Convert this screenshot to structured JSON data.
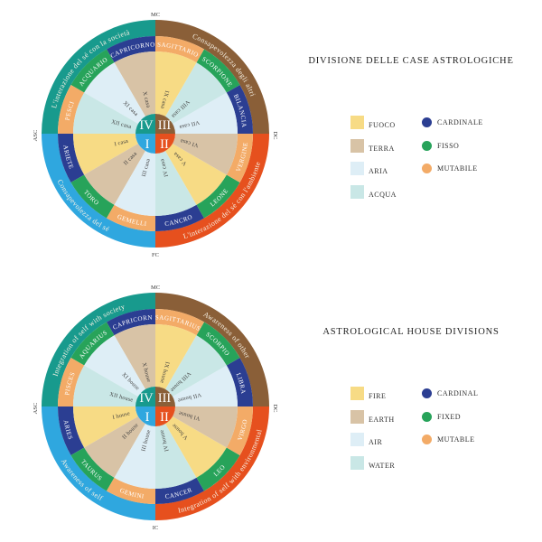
{
  "colors": {
    "fire": "#f7db85",
    "earth": "#d8c3a6",
    "air": "#deeef6",
    "water": "#c9e7e6",
    "cardinal": "#2b3e92",
    "fixed": "#27a35a",
    "mutable": "#f3ab67",
    "quadrant_teal": "#189a8d",
    "quadrant_brown": "#8a5f38",
    "quadrant_blue": "#2fa7df",
    "quadrant_red": "#e6501e",
    "wheel_text_light": "#f6f1e4",
    "wheel_text_dark": "#3f3e3e",
    "outside_label": "#3a3a3a"
  },
  "legends": [
    {
      "title": "DIVISIONE DELLE CASE ASTROLOGICHE",
      "elements": [
        {
          "label": "FUOCO",
          "key": "fire"
        },
        {
          "label": "TERRA",
          "key": "earth"
        },
        {
          "label": "ARIA",
          "key": "air"
        },
        {
          "label": "ACQUA",
          "key": "water"
        }
      ],
      "modalities": [
        {
          "label": "CARDINALE",
          "key": "cardinal"
        },
        {
          "label": "FISSO",
          "key": "fixed"
        },
        {
          "label": "MUTABILE",
          "key": "mutable"
        }
      ]
    },
    {
      "title": "ASTROLOGICAL HOUSE DIVISIONS",
      "elements": [
        {
          "label": "FIRE",
          "key": "fire"
        },
        {
          "label": "EARTH",
          "key": "earth"
        },
        {
          "label": "AIR",
          "key": "air"
        },
        {
          "label": "WATER",
          "key": "water"
        }
      ],
      "modalities": [
        {
          "label": "CARDINAL",
          "key": "cardinal"
        },
        {
          "label": "FIXED",
          "key": "fixed"
        },
        {
          "label": "MUTABLE",
          "key": "mutable"
        }
      ]
    }
  ],
  "wheels": [
    {
      "id": "italian",
      "cardinal_points": {
        "top": "MC",
        "right": "DC",
        "bottom": "FC",
        "left": "ASC"
      },
      "quadrants": [
        {
          "position": "top-left",
          "numeral": "IV",
          "label": "L'interazione del sé con la società",
          "color": "quadrant_teal"
        },
        {
          "position": "top-right",
          "numeral": "III",
          "label": "Consapevolezza degli altri",
          "color": "quadrant_brown"
        },
        {
          "position": "bottom-left",
          "numeral": "I",
          "label": "Consapevolezza del sé",
          "color": "quadrant_blue"
        },
        {
          "position": "bottom-right",
          "numeral": "II",
          "label": "L'interazione del sé con l'ambiente",
          "color": "quadrant_red"
        }
      ],
      "houses": [
        {
          "house": "I casa",
          "sign": "ARIETE",
          "element": "fire",
          "modality": "cardinal"
        },
        {
          "house": "II casa",
          "sign": "TORO",
          "element": "earth",
          "modality": "fixed"
        },
        {
          "house": "III casa",
          "sign": "GEMELLI",
          "element": "air",
          "modality": "mutable"
        },
        {
          "house": "IV casa",
          "sign": "CANCRO",
          "element": "water",
          "modality": "cardinal"
        },
        {
          "house": "V casa",
          "sign": "LEONE",
          "element": "fire",
          "modality": "fixed"
        },
        {
          "house": "VI casa",
          "sign": "VERGINE",
          "element": "earth",
          "modality": "mutable"
        },
        {
          "house": "VII casa",
          "sign": "BILANCIA",
          "element": "air",
          "modality": "cardinal"
        },
        {
          "house": "VIII casa",
          "sign": "SCORPIONE",
          "element": "water",
          "modality": "fixed"
        },
        {
          "house": "IX casa",
          "sign": "SAGITTARIO",
          "element": "fire",
          "modality": "mutable"
        },
        {
          "house": "X casa",
          "sign": "CAPRICORNO",
          "element": "earth",
          "modality": "cardinal"
        },
        {
          "house": "XI casa",
          "sign": "ACQUARIO",
          "element": "air",
          "modality": "fixed"
        },
        {
          "house": "XII casa",
          "sign": "PESCI",
          "element": "water",
          "modality": "mutable"
        }
      ]
    },
    {
      "id": "english",
      "cardinal_points": {
        "top": "MC",
        "right": "DC",
        "bottom": "IC",
        "left": "ASC"
      },
      "quadrants": [
        {
          "position": "top-left",
          "numeral": "IV",
          "label": "Integration of self with society",
          "color": "quadrant_teal"
        },
        {
          "position": "top-right",
          "numeral": "III",
          "label": "Awareness of other",
          "color": "quadrant_brown"
        },
        {
          "position": "bottom-left",
          "numeral": "I",
          "label": "Awareness of self",
          "color": "quadrant_blue"
        },
        {
          "position": "bottom-right",
          "numeral": "II",
          "label": "Integration of self with environmental",
          "color": "quadrant_red"
        }
      ],
      "houses": [
        {
          "house": "I house",
          "sign": "ARIES",
          "element": "fire",
          "modality": "cardinal"
        },
        {
          "house": "II house",
          "sign": "TAURUS",
          "element": "earth",
          "modality": "fixed"
        },
        {
          "house": "III house",
          "sign": "GEMINI",
          "element": "air",
          "modality": "mutable"
        },
        {
          "house": "IV house",
          "sign": "CANCER",
          "element": "water",
          "modality": "cardinal"
        },
        {
          "house": "V house",
          "sign": "LEO",
          "element": "fire",
          "modality": "fixed"
        },
        {
          "house": "VI house",
          "sign": "VIRGO",
          "element": "earth",
          "modality": "mutable"
        },
        {
          "house": "VII house",
          "sign": "LIBRA",
          "element": "air",
          "modality": "cardinal"
        },
        {
          "house": "VIII house",
          "sign": "SCORPIO",
          "element": "water",
          "modality": "fixed"
        },
        {
          "house": "IX house",
          "sign": "SAGITTARIUS",
          "element": "fire",
          "modality": "mutable"
        },
        {
          "house": "X house",
          "sign": "CAPRICORN",
          "element": "earth",
          "modality": "cardinal"
        },
        {
          "house": "XI house",
          "sign": "AQUARIUS",
          "element": "air",
          "modality": "fixed"
        },
        {
          "house": "XII house",
          "sign": "PISCES",
          "element": "water",
          "modality": "mutable"
        }
      ]
    }
  ]
}
